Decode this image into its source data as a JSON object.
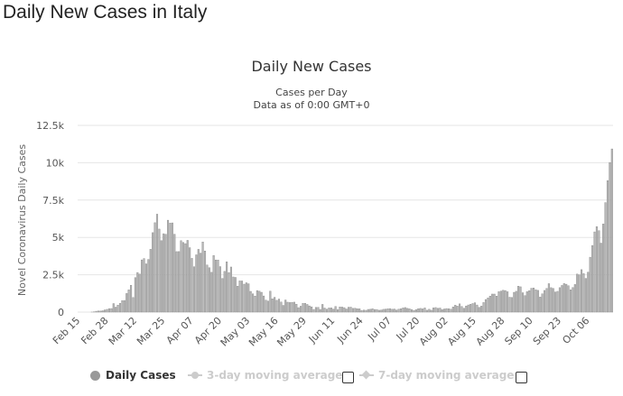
{
  "page": {
    "title": "Daily New Cases in Italy"
  },
  "chart_data": {
    "type": "bar",
    "title": "Daily New Cases",
    "subtitle_line1": "Cases per Day",
    "subtitle_line2": "Data as of 0:00 GMT+0",
    "ylabel": "Novel Coronavirus Daily Cases",
    "xlabel": "",
    "ylim": [
      0,
      12500
    ],
    "yticks": [
      "0",
      "2.5k",
      "5k",
      "7.5k",
      "10k",
      "12.5k"
    ],
    "ytick_values": [
      0,
      2500,
      5000,
      7500,
      10000,
      12500
    ],
    "x_tick_labels": [
      "Feb 15",
      "Feb 28",
      "Mar 12",
      "Mar 25",
      "Apr 07",
      "Apr 20",
      "May 03",
      "May 16",
      "May 29",
      "Jun 11",
      "Jun 24",
      "Jul 07",
      "Jul 20",
      "Aug 02",
      "Aug 15",
      "Aug 28",
      "Sep 10",
      "Sep 23",
      "Oct 06"
    ],
    "start_date": "Feb 15",
    "values": [
      0,
      0,
      0,
      0,
      0,
      0,
      3,
      17,
      58,
      78,
      72,
      94,
      147,
      185,
      234,
      239,
      573,
      335,
      466,
      587,
      769,
      778,
      1247,
      1492,
      1797,
      977,
      2313,
      2651,
      2547,
      3497,
      3590,
      3233,
      3526,
      4207,
      5322,
      5986,
      6557,
      5560,
      4789,
      5249,
      5210,
      6153,
      5959,
      5974,
      5217,
      4050,
      4053,
      4782,
      4668,
      4585,
      4805,
      4316,
      3599,
      3039,
      3836,
      4204,
      3951,
      4694,
      4092,
      3153,
      2972,
      2667,
      3786,
      3493,
      3491,
      3047,
      2256,
      2729,
      3370,
      2646,
      3021,
      2357,
      2324,
      1739,
      2091,
      2086,
      1872,
      1965,
      1900,
      1389,
      1221,
      1075,
      1444,
      1401,
      1327,
      1083,
      802,
      744,
      1402,
      888,
      992,
      789,
      875,
      675,
      451,
      813,
      665,
      642,
      652,
      669,
      531,
      300,
      397,
      584,
      593,
      516,
      416,
      355,
      178,
      318,
      321,
      177,
      518,
      270,
      197,
      280,
      283,
      202,
      379,
      163,
      346,
      338,
      301,
      210,
      329,
      333,
      251,
      262,
      224,
      221,
      113,
      136,
      122,
      182,
      192,
      223,
      175,
      174,
      126,
      142,
      187,
      201,
      223,
      235,
      192,
      208,
      138,
      193,
      229,
      280,
      306,
      252,
      219,
      169,
      114,
      163,
      230,
      249,
      218,
      282,
      128,
      190,
      129,
      282,
      306,
      255,
      275,
      170,
      212,
      239,
      224,
      193,
      347,
      463,
      401,
      552,
      381,
      259,
      412,
      481,
      523,
      574,
      629,
      479,
      320,
      403,
      642,
      845,
      947,
      1071,
      1210,
      1209,
      1071,
      1367,
      1411,
      1462,
      1444,
      1365,
      996,
      978,
      1326,
      1397,
      1733,
      1695,
      1297,
      1108,
      1370,
      1434,
      1597,
      1616,
      1501,
      1458,
      1008,
      1229,
      1452,
      1585,
      1907,
      1638,
      1587,
      1350,
      1392,
      1640,
      1786,
      1912,
      1869,
      1766,
      1494,
      1648,
      1851,
      2548,
      2499,
      2844,
      2578,
      2257,
      2677,
      3678,
      4458,
      5372,
      5724,
      5456,
      4619,
      5901,
      7332,
      8804,
      10010,
      10925
    ]
  },
  "legend": {
    "items": [
      {
        "label": "Daily Cases",
        "active": true
      },
      {
        "label": "3-day moving average",
        "active": false
      },
      {
        "label": "7-day moving average",
        "active": false
      }
    ]
  }
}
